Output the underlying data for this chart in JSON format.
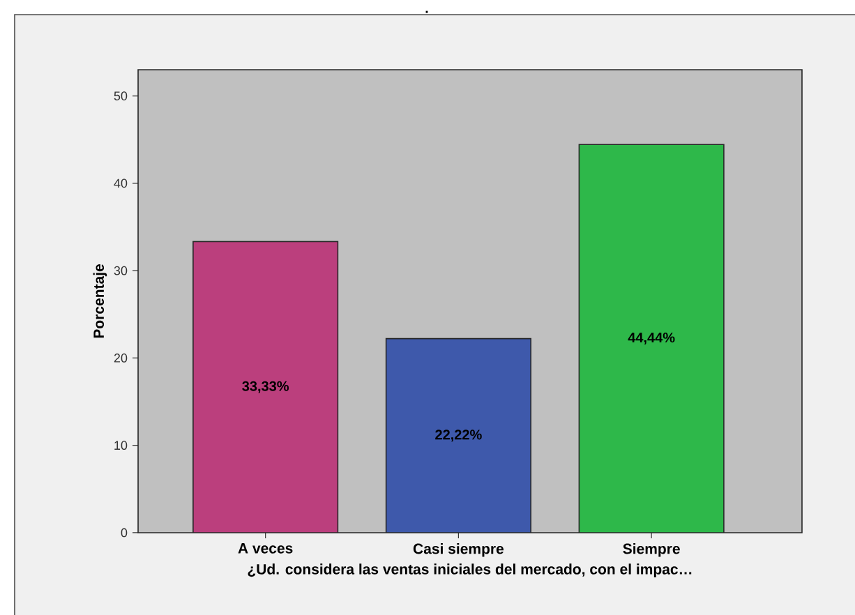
{
  "chart_data": {
    "type": "bar",
    "title": ".",
    "categories": [
      "A veces",
      "Casi siempre",
      "Siempre"
    ],
    "values": [
      33.33,
      22.22,
      44.44
    ],
    "colors": [
      "#bb3f7d",
      "#3e59ab",
      "#2eb84a"
    ],
    "value_labels": [
      "33,33%",
      "22,22%",
      "44,44%"
    ],
    "xlabel": "¿Ud. considera las ventas iniciales del mercado, con el impac…",
    "ylabel": "Porcentaje",
    "ylim": [
      0,
      53
    ],
    "yticks": [
      0,
      10,
      20,
      30,
      40,
      50
    ]
  }
}
